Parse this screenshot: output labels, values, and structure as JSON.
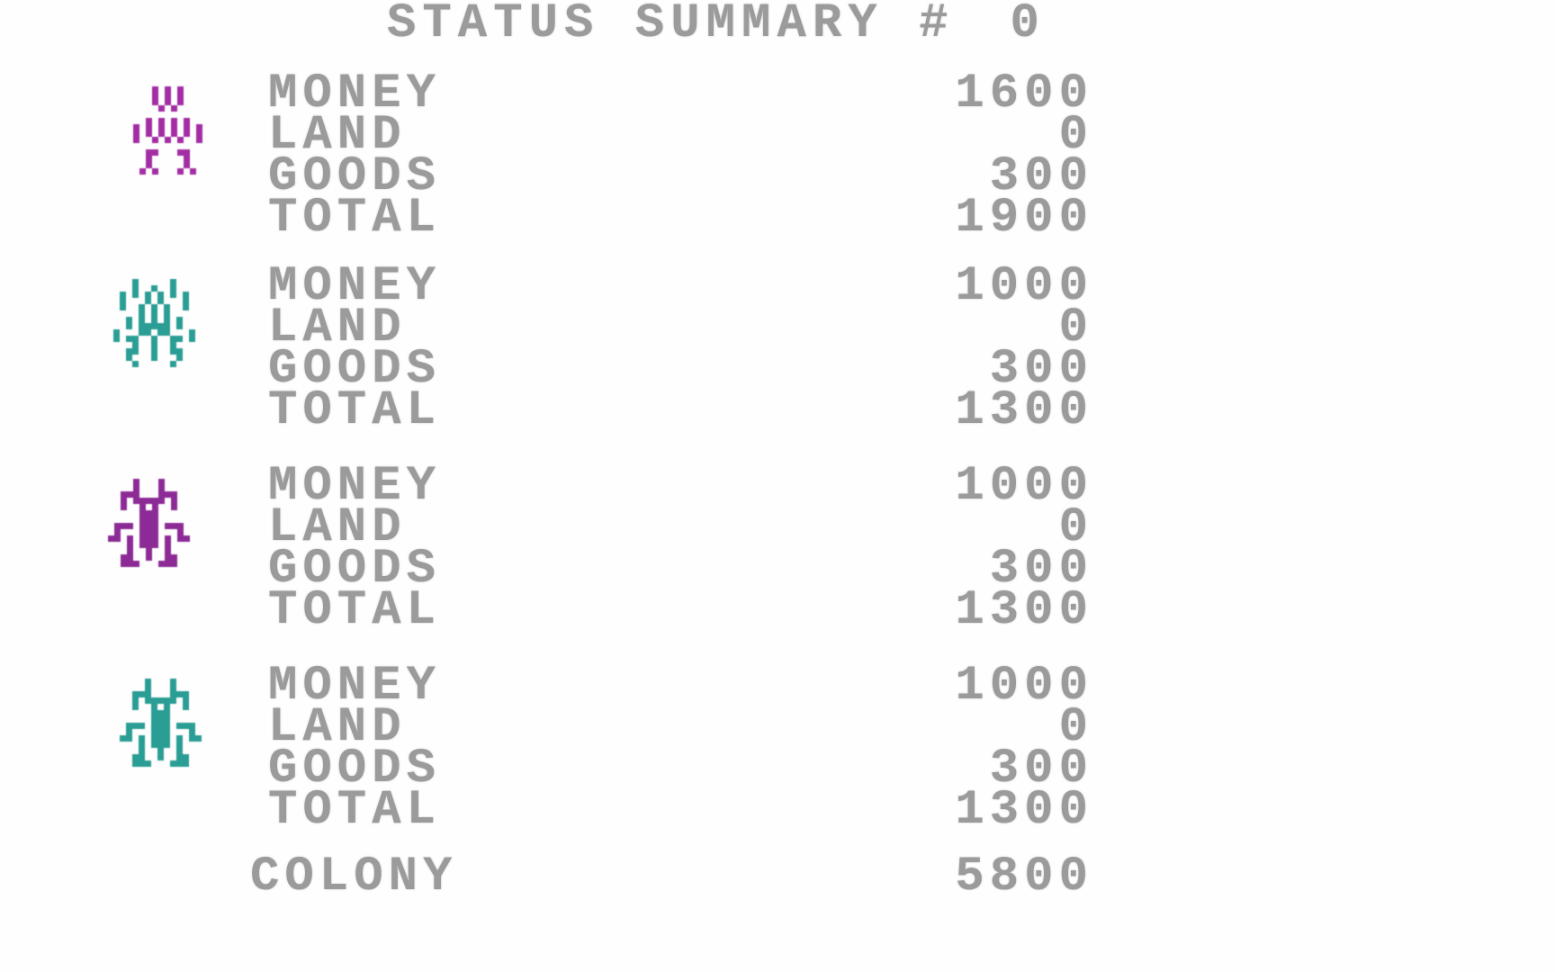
{
  "title": {
    "label": "STATUS SUMMARY #",
    "round": "0"
  },
  "colors": {
    "background": "#fefefe",
    "text": "#9b9b9b",
    "player1": "#a32da3",
    "player2": "#2a9d94",
    "player3": "#8d2b96",
    "player4": "#2a9d94"
  },
  "players": [
    {
      "sprite": "humanoid",
      "color": "#a32da3",
      "rows": [
        {
          "label": "MONEY",
          "value": "1600"
        },
        {
          "label": "LAND",
          "value": "0"
        },
        {
          "label": "GOODS",
          "value": "300"
        },
        {
          "label": "TOTAL",
          "value": "1900"
        }
      ]
    },
    {
      "sprite": "alien",
      "color": "#2a9d94",
      "rows": [
        {
          "label": "MONEY",
          "value": "1000"
        },
        {
          "label": "LAND",
          "value": "0"
        },
        {
          "label": "GOODS",
          "value": "300"
        },
        {
          "label": "TOTAL",
          "value": "1300"
        }
      ]
    },
    {
      "sprite": "bug",
      "color": "#8d2b96",
      "rows": [
        {
          "label": "MONEY",
          "value": "1000"
        },
        {
          "label": "LAND",
          "value": "0"
        },
        {
          "label": "GOODS",
          "value": "300"
        },
        {
          "label": "TOTAL",
          "value": "1300"
        }
      ]
    },
    {
      "sprite": "bug",
      "color": "#2a9d94",
      "rows": [
        {
          "label": "MONEY",
          "value": "1000"
        },
        {
          "label": "LAND",
          "value": "0"
        },
        {
          "label": "GOODS",
          "value": "300"
        },
        {
          "label": "TOTAL",
          "value": "1300"
        }
      ]
    }
  ],
  "colony": {
    "label": "COLONY",
    "value": "5800"
  },
  "sprites": {
    "humanoid": [
      "...#.#.#...",
      "...#.#.#...",
      "...#.#.#...",
      "....#.#....",
      "...........",
      "..#.#.#.#..",
      "#.#.#.#.#.#",
      "#.#.#.#.#.#",
      "#..#.#.#..#",
      "...........",
      "..##...##..",
      "..#.....#..",
      "..#.....#..",
      ".#.#...#.#."
    ],
    "alien": [
      "...#.....#...",
      "...#..#..#...",
      ".#.#.#.#.#.#.",
      ".#...#.#...#.",
      ".#..#.#.#..#.",
      "....#.#.#....",
      "..#.#.#.#.#..",
      "..#.#####.#..",
      "#...##.##...#",
      "#.##..#..##.#",
      "...#..#..#...",
      "..##..#..##..",
      "..#...#...#..",
      "...#.....#..."
    ],
    "bug": [
      "....#...#....",
      "....#...#....",
      "..###...###..",
      "..#.#####.#..",
      "..#..#.#..#..",
      ".....###.....",
      ".....###.....",
      ".###.###.###.",
      ".#...###...#.",
      "##.#.###.#.##",
      "...#.###.#...",
      "...#..#..#...",
      "..##..#..##..",
      "..###...###.."
    ]
  }
}
